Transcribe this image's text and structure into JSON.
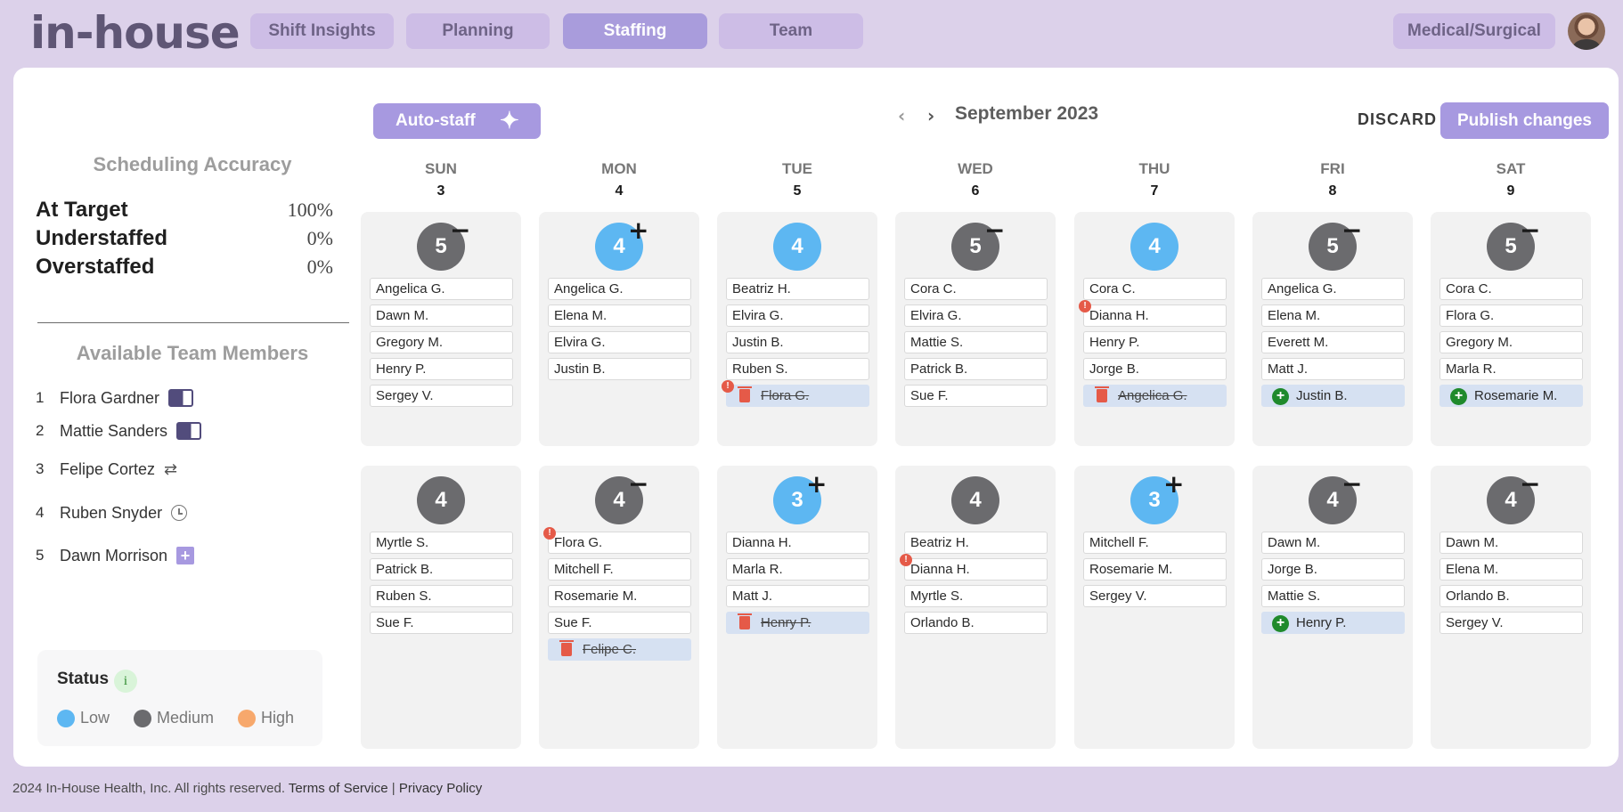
{
  "header": {
    "logo": "in-house",
    "tabs": [
      "Shift Insights",
      "Planning",
      "Staffing",
      "Team"
    ],
    "active_tab": "Staffing",
    "unit": "Medical/Surgical"
  },
  "accuracy": {
    "title": "Scheduling Accuracy",
    "rows": [
      {
        "label": "At Target",
        "value": "100%"
      },
      {
        "label": "Understaffed",
        "value": "0%"
      },
      {
        "label": "Overstaffed",
        "value": "0%"
      }
    ]
  },
  "members": {
    "title": "Available Team Members",
    "items": [
      {
        "num": "1",
        "name": "Flora Gardner",
        "icon": "toggle-icon"
      },
      {
        "num": "2",
        "name": "Mattie Sanders",
        "icon": "toggle-icon"
      },
      {
        "num": "3",
        "name": "Felipe Cortez",
        "icon": "transfer-icon"
      },
      {
        "num": "4",
        "name": "Ruben Snyder",
        "icon": "clock-icon"
      },
      {
        "num": "5",
        "name": "Dawn Morrison",
        "icon": "plus-square-icon"
      }
    ]
  },
  "status": {
    "title": "Status",
    "info": "i",
    "legend": [
      {
        "label": "Low",
        "color": "#5db7f2"
      },
      {
        "label": "Medium",
        "color": "#6b6b6e"
      },
      {
        "label": "High",
        "color": "#f7a86c"
      }
    ]
  },
  "toolbar": {
    "autostaff": "Auto-staff",
    "prev": "‹",
    "next": "›",
    "month": "September 2023",
    "discard": "DISCARD",
    "publish": "Publish changes"
  },
  "days": [
    {
      "name": "SUN",
      "num": "3"
    },
    {
      "name": "MON",
      "num": "4"
    },
    {
      "name": "TUE",
      "num": "5"
    },
    {
      "name": "WED",
      "num": "6"
    },
    {
      "name": "THU",
      "num": "7"
    },
    {
      "name": "FRI",
      "num": "8"
    },
    {
      "name": "SAT",
      "num": "9"
    }
  ],
  "shifts": [
    [
      {
        "count": "5",
        "level": "medium",
        "mark": "minus",
        "staff": [
          {
            "name": "Angelica G."
          },
          {
            "name": "Dawn M."
          },
          {
            "name": "Gregory M."
          },
          {
            "name": "Henry P."
          },
          {
            "name": "Sergey V."
          }
        ]
      },
      {
        "count": "4",
        "level": "low",
        "mark": "plus",
        "staff": [
          {
            "name": "Angelica G."
          },
          {
            "name": "Elena M."
          },
          {
            "name": "Elvira G."
          },
          {
            "name": "Justin B."
          }
        ]
      },
      {
        "count": "4",
        "level": "low",
        "mark": "",
        "staff": [
          {
            "name": "Beatriz H."
          },
          {
            "name": "Elvira G."
          },
          {
            "name": "Justin B."
          },
          {
            "name": "Ruben S."
          },
          {
            "name": "Flora G.",
            "state": "removed",
            "alert": true
          }
        ]
      },
      {
        "count": "5",
        "level": "medium",
        "mark": "minus",
        "staff": [
          {
            "name": "Cora C."
          },
          {
            "name": "Elvira G."
          },
          {
            "name": "Mattie S."
          },
          {
            "name": "Patrick B."
          },
          {
            "name": "Sue F."
          }
        ]
      },
      {
        "count": "4",
        "level": "low",
        "mark": "",
        "staff": [
          {
            "name": "Cora C."
          },
          {
            "name": "Dianna H.",
            "alert": true
          },
          {
            "name": "Henry P."
          },
          {
            "name": "Jorge B."
          },
          {
            "name": "Angelica G.",
            "state": "removed"
          }
        ]
      },
      {
        "count": "5",
        "level": "medium",
        "mark": "minus",
        "staff": [
          {
            "name": "Angelica G."
          },
          {
            "name": "Elena M."
          },
          {
            "name": "Everett M."
          },
          {
            "name": "Matt J."
          },
          {
            "name": "Justin B.",
            "state": "added"
          }
        ]
      },
      {
        "count": "5",
        "level": "medium",
        "mark": "minus",
        "staff": [
          {
            "name": "Cora C."
          },
          {
            "name": "Flora G."
          },
          {
            "name": "Gregory M."
          },
          {
            "name": "Marla R."
          },
          {
            "name": "Rosemarie M.",
            "state": "added"
          }
        ]
      }
    ],
    [
      {
        "count": "4",
        "level": "medium",
        "mark": "",
        "staff": [
          {
            "name": "Myrtle S."
          },
          {
            "name": "Patrick B."
          },
          {
            "name": "Ruben S."
          },
          {
            "name": "Sue F."
          }
        ]
      },
      {
        "count": "4",
        "level": "medium",
        "mark": "minus",
        "staff": [
          {
            "name": "Flora G.",
            "alert": true
          },
          {
            "name": "Mitchell F."
          },
          {
            "name": "Rosemarie M."
          },
          {
            "name": "Sue F."
          },
          {
            "name": "Felipe C.",
            "state": "removed"
          }
        ]
      },
      {
        "count": "3",
        "level": "low",
        "mark": "plus",
        "staff": [
          {
            "name": "Dianna H."
          },
          {
            "name": "Marla R."
          },
          {
            "name": "Matt J."
          },
          {
            "name": "Henry P.",
            "state": "removed"
          }
        ]
      },
      {
        "count": "4",
        "level": "medium",
        "mark": "",
        "staff": [
          {
            "name": "Beatriz H."
          },
          {
            "name": "Dianna H.",
            "alert": true
          },
          {
            "name": "Myrtle S."
          },
          {
            "name": "Orlando B."
          }
        ]
      },
      {
        "count": "3",
        "level": "low",
        "mark": "plus",
        "staff": [
          {
            "name": "Mitchell F."
          },
          {
            "name": "Rosemarie M."
          },
          {
            "name": "Sergey V."
          }
        ]
      },
      {
        "count": "4",
        "level": "medium",
        "mark": "minus",
        "staff": [
          {
            "name": "Dawn M."
          },
          {
            "name": "Jorge B."
          },
          {
            "name": "Mattie S."
          },
          {
            "name": "Henry P.",
            "state": "added"
          }
        ]
      },
      {
        "count": "4",
        "level": "medium",
        "mark": "minus",
        "staff": [
          {
            "name": "Dawn M."
          },
          {
            "name": "Elena M."
          },
          {
            "name": "Orlando B."
          },
          {
            "name": "Sergey V."
          }
        ]
      }
    ]
  ],
  "footer": {
    "copyright": "2024 In-House Health, Inc. All rights reserved.",
    "terms": "Terms of Service",
    "sep": "|",
    "privacy": "Privacy Policy"
  }
}
